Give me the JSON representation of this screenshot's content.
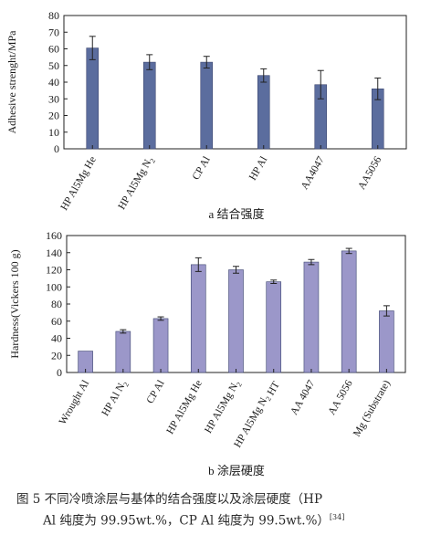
{
  "chart_data": [
    {
      "type": "bar",
      "panel_label": "a 结合强度",
      "ylabel": "Adhesive strenght/MPa",
      "ylim": [
        0,
        80
      ],
      "yticks": [
        "0",
        "10",
        "20",
        "30",
        "40",
        "50",
        "60",
        "70",
        "80"
      ],
      "categories": [
        "HP Al5Mg He",
        "HP Al5Mg N2",
        "CP Al",
        "HP Al",
        "AA4047",
        "AA5056"
      ],
      "values": [
        60.5,
        52,
        52,
        44,
        38.5,
        36
      ],
      "errors": [
        7,
        4.5,
        3.5,
        4,
        8.5,
        6.5
      ],
      "bar_color": "#5b6d9e",
      "grid": false
    },
    {
      "type": "bar",
      "panel_label": "b 涂层硬度",
      "ylabel": "Hardness(Vickers 100 g)",
      "ylim": [
        0,
        160
      ],
      "yticks": [
        "0",
        "20",
        "40",
        "60",
        "80",
        "100",
        "120",
        "140",
        "160"
      ],
      "categories": [
        "Wrought Al",
        "HP Al N2",
        "CP Al",
        "HP Al5Mg He",
        "HP Al5Mg N2",
        "HP Al5Mg N2 HT",
        "AA 4047",
        "AA 5056",
        "Mg (Substrate)"
      ],
      "values": [
        25,
        48,
        63,
        126,
        120,
        106,
        129,
        142,
        72
      ],
      "errors": [
        0,
        2,
        2,
        8,
        4,
        2,
        3,
        3,
        6
      ],
      "bar_color": "#9b97c9",
      "grid": false
    }
  ],
  "caption": {
    "line1": "图 5    不同冷喷涂层与基体的结合强度以及涂层硬度（HP",
    "line2": "Al 纯度为 99.95wt.%，CP Al 纯度为 99.5wt.%）",
    "ref": "[34]"
  }
}
